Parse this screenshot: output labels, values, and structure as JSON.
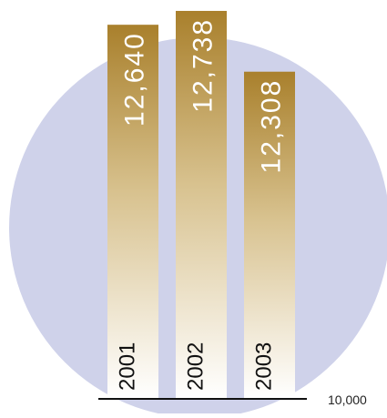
{
  "chart_data": {
    "type": "bar",
    "categories": [
      "2001",
      "2002",
      "2003"
    ],
    "values": [
      12640,
      12738,
      12308
    ],
    "value_labels": [
      "12,640",
      "12,738",
      "12,308"
    ],
    "baseline_label": "10,000",
    "ylim": [
      10000,
      12770
    ],
    "legend": "none",
    "grid": false
  },
  "colors": {
    "circle": "#cfd2ea",
    "bar_top": "#a9802c",
    "bar_mid": "#d8c28f",
    "bar_bottom": "#ffffff",
    "value_text": "#ffffff",
    "category_text": "#111111",
    "baseline": "#111111",
    "baseline_label": "#222222"
  }
}
